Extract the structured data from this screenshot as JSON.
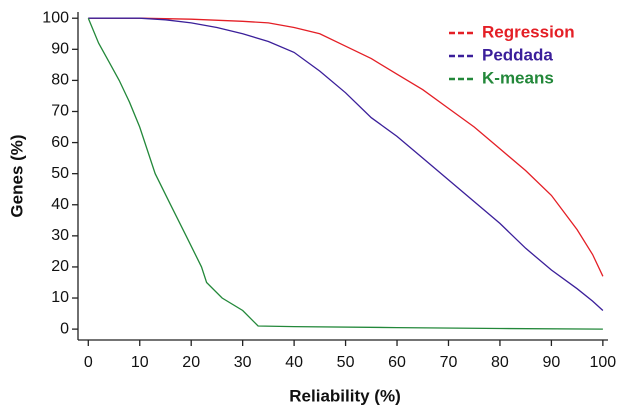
{
  "chart_data": {
    "type": "line",
    "x_label": "Reliability (%)",
    "y_label": "Genes (%)",
    "xlim": [
      -2,
      101
    ],
    "ylim": [
      -3.5,
      102
    ],
    "xticks": [
      0,
      10,
      20,
      30,
      40,
      50,
      60,
      70,
      80,
      90,
      100
    ],
    "yticks": [
      0,
      10,
      20,
      30,
      40,
      50,
      60,
      70,
      80,
      90,
      100
    ],
    "legend": "upper right",
    "series": [
      {
        "name": "Regression",
        "color": "#e41f26",
        "x": [
          0,
          10,
          20,
          30,
          35,
          40,
          45,
          50,
          55,
          60,
          65,
          70,
          75,
          80,
          85,
          90,
          95,
          98,
          100
        ],
        "values": [
          100,
          100,
          99.7,
          99,
          98.5,
          97,
          95,
          91,
          87,
          82,
          77,
          71,
          65,
          58,
          51,
          43,
          32,
          24,
          17
        ]
      },
      {
        "name": "Peddada",
        "color": "#3b1f9a",
        "x": [
          0,
          10,
          15,
          20,
          25,
          30,
          35,
          40,
          45,
          50,
          55,
          60,
          65,
          70,
          75,
          80,
          85,
          90,
          95,
          98,
          100
        ],
        "values": [
          100,
          100,
          99.5,
          98.5,
          97,
          95,
          92.5,
          89,
          83,
          76,
          68,
          62,
          55,
          48,
          41,
          34,
          26,
          19,
          13,
          9,
          6
        ]
      },
      {
        "name": "K-means",
        "color": "#23883a",
        "x": [
          0,
          2,
          4,
          6,
          8,
          10,
          13,
          16,
          19,
          22,
          23,
          26,
          30,
          33,
          40,
          60,
          80,
          100
        ],
        "values": [
          100,
          92,
          86,
          80,
          73,
          65,
          50,
          40,
          30,
          20,
          15,
          10,
          6,
          1,
          0.8,
          0.5,
          0.2,
          0
        ]
      }
    ]
  }
}
